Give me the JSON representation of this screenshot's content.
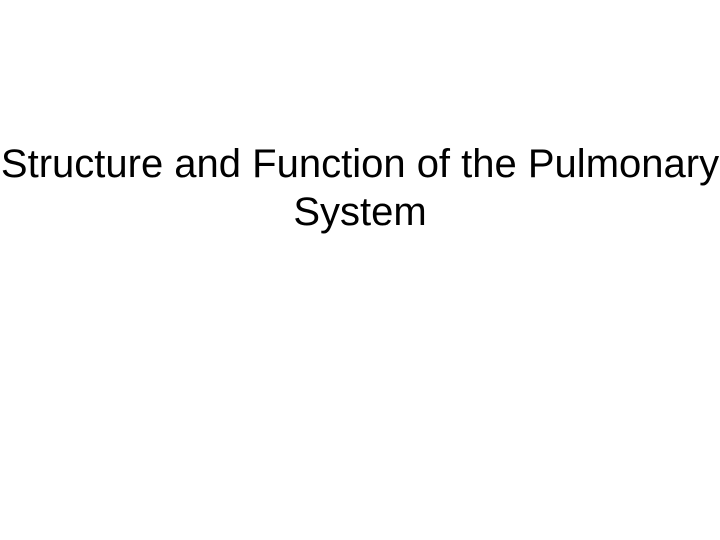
{
  "slide": {
    "title": "Structure and Function of the Pulmonary System",
    "background_color": "#ffffff",
    "text_color": "#000000",
    "title_fontsize": 40,
    "title_fontweight": 400,
    "font_family": "Arial"
  }
}
